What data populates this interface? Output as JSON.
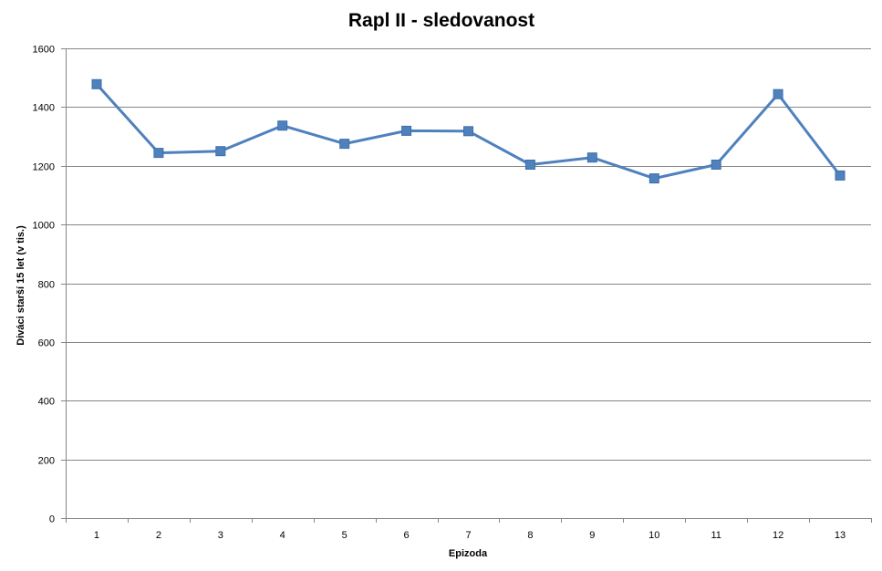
{
  "chart_data": {
    "type": "line",
    "title": "Rapl II - sledovanost",
    "xlabel": "Epizoda",
    "ylabel": "Diváci starší 15 let (v tis.)",
    "categories": [
      "1",
      "2",
      "3",
      "4",
      "5",
      "6",
      "7",
      "8",
      "9",
      "10",
      "11",
      "12",
      "13"
    ],
    "series": [
      {
        "values": [
          1478,
          1244,
          1250,
          1337,
          1275,
          1319,
          1318,
          1204,
          1228,
          1157,
          1204,
          1444,
          1167
        ],
        "color": "#4F81BD",
        "marker": "square"
      }
    ],
    "ylim": [
      0,
      1600
    ],
    "yticks": [
      0,
      200,
      400,
      600,
      800,
      1000,
      1200,
      1400,
      1600
    ],
    "grid": true,
    "legend": "none"
  }
}
